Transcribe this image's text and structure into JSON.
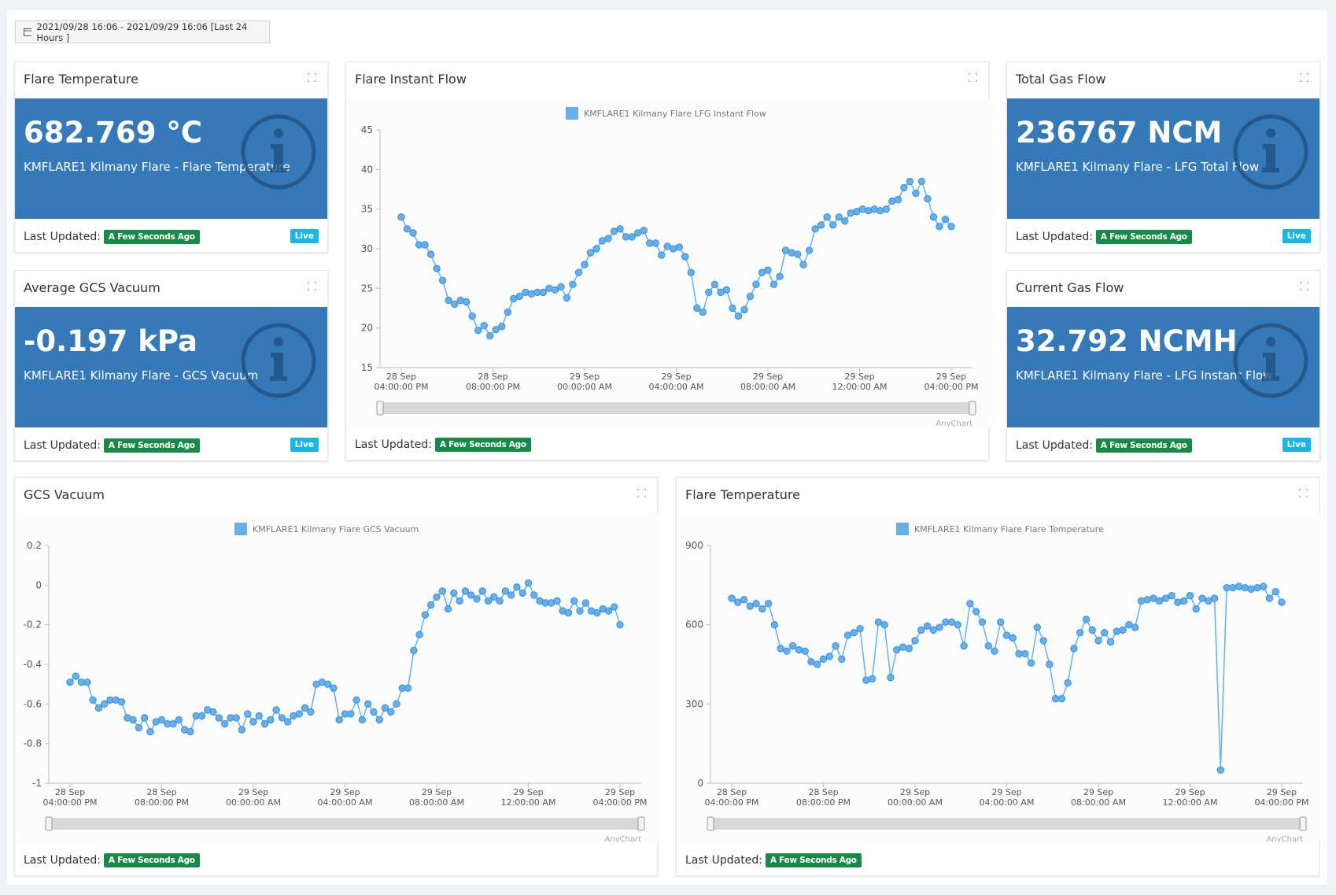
{
  "header": {
    "date_range": "2021/09/28 16:06 - 2021/09/29 16:06 [Last 24 Hours ]"
  },
  "cards": [
    {
      "title": "Flare Temperature",
      "value": "682.769 °C",
      "description": "KMFLARE1 Kilmany Flare - Flare Temperature",
      "updated_label": "Last Updated:",
      "updated_badge": "A Few Seconds Ago",
      "live": "Live"
    },
    {
      "title": "Average GCS Vacuum",
      "value": "-0.197 kPa",
      "description": "KMFLARE1 Kilmany Flare - GCS Vacuum",
      "updated_label": "Last Updated:",
      "updated_badge": "A Few Seconds Ago",
      "live": "Live"
    },
    {
      "title": "Total Gas Flow",
      "value": "236767 NCM",
      "description": "KMFLARE1 Kilmany Flare - LFG Total Flow",
      "updated_label": "Last Updated:",
      "updated_badge": "A Few Seconds Ago",
      "live": "Live"
    },
    {
      "title": "Current Gas Flow",
      "value": "32.792 NCMH",
      "description": "KMFLARE1 Kilmany Flare - LFG Instant Flow",
      "updated_label": "Last Updated:",
      "updated_badge": "A Few Seconds Ago",
      "live": "Live"
    }
  ],
  "chart_data": [
    {
      "type": "line",
      "title": "Flare Instant Flow",
      "credit": "AnyChart",
      "footer": {
        "label": "Last Updated:",
        "badge": "A Few Seconds Ago"
      },
      "series": [
        {
          "name": "KMFLARE1 Kilmany Flare LFG Instant Flow",
          "color": "#64b0ee",
          "values": [
            34,
            32.5,
            32,
            30.5,
            30.5,
            29.3,
            27.5,
            26,
            23.5,
            23,
            23.5,
            23.3,
            21.5,
            19.7,
            20.3,
            19,
            19.8,
            20.2,
            22,
            23.7,
            24,
            24.5,
            24.3,
            24.5,
            24.5,
            25,
            24.8,
            25.2,
            23.8,
            25.5,
            27,
            28,
            29.5,
            30,
            31,
            31.3,
            32.2,
            32.5,
            31.5,
            31.5,
            32,
            32.3,
            30.7,
            30.7,
            29.2,
            30.3,
            30,
            30.2,
            29,
            27,
            22.5,
            22,
            24.5,
            25.5,
            24.5,
            24.8,
            22.5,
            21.5,
            22.3,
            24,
            25.5,
            27,
            27.3,
            25.5,
            26.5,
            29.8,
            29.5,
            29.3,
            28,
            29.8,
            32.5,
            33,
            34,
            33,
            34,
            33.5,
            34.5,
            34.7,
            35,
            34.8,
            35,
            34.8,
            35,
            36,
            36.2,
            37.7,
            38.5,
            37,
            38.5,
            36.3,
            34,
            32.8,
            33.7,
            32.8
          ]
        }
      ],
      "ylim": [
        15,
        45
      ],
      "yticks": [
        15,
        20,
        25,
        30,
        35,
        40,
        45
      ],
      "xticks": [
        [
          "28 Sep",
          "04:00:00 PM"
        ],
        [
          "28 Sep",
          "08:00:00 PM"
        ],
        [
          "29 Sep",
          "00:00:00 AM"
        ],
        [
          "29 Sep",
          "04:00:00 AM"
        ],
        [
          "29 Sep",
          "08:00:00 AM"
        ],
        [
          "29 Sep",
          "12:00:00 AM"
        ],
        [
          "29 Sep",
          "04:00:00 PM"
        ]
      ]
    },
    {
      "type": "line",
      "title": "GCS Vacuum",
      "credit": "AnyChart",
      "footer": {
        "label": "Last Updated:",
        "badge": "A Few Seconds Ago"
      },
      "series": [
        {
          "name": "KMFLARE1 Kilmany Flare GCS Vacuum",
          "color": "#64b0ee",
          "values": [
            -0.49,
            -0.46,
            -0.49,
            -0.49,
            -0.58,
            -0.62,
            -0.6,
            -0.58,
            -0.58,
            -0.59,
            -0.67,
            -0.68,
            -0.72,
            -0.67,
            -0.74,
            -0.69,
            -0.68,
            -0.7,
            -0.7,
            -0.68,
            -0.73,
            -0.74,
            -0.66,
            -0.66,
            -0.63,
            -0.64,
            -0.67,
            -0.7,
            -0.67,
            -0.67,
            -0.73,
            -0.65,
            -0.69,
            -0.66,
            -0.7,
            -0.68,
            -0.63,
            -0.67,
            -0.69,
            -0.66,
            -0.65,
            -0.62,
            -0.64,
            -0.5,
            -0.49,
            -0.5,
            -0.52,
            -0.68,
            -0.65,
            -0.65,
            -0.58,
            -0.68,
            -0.6,
            -0.64,
            -0.68,
            -0.62,
            -0.64,
            -0.6,
            -0.52,
            -0.52,
            -0.33,
            -0.25,
            -0.15,
            -0.1,
            -0.06,
            -0.03,
            -0.12,
            -0.04,
            -0.08,
            -0.03,
            -0.05,
            -0.07,
            -0.03,
            -0.08,
            -0.06,
            -0.08,
            -0.03,
            -0.05,
            -0.01,
            -0.04,
            0.01,
            -0.05,
            -0.08,
            -0.09,
            -0.09,
            -0.08,
            -0.13,
            -0.14,
            -0.08,
            -0.13,
            -0.09,
            -0.13,
            -0.14,
            -0.12,
            -0.13,
            -0.11,
            -0.2
          ]
        }
      ],
      "ylim": [
        -1,
        0.2
      ],
      "yticks": [
        -1,
        -0.8,
        -0.6,
        -0.4,
        -0.2,
        0,
        0.2
      ],
      "xticks": [
        [
          "28 Sep",
          "04:00:00 PM"
        ],
        [
          "28 Sep",
          "08:00:00 PM"
        ],
        [
          "29 Sep",
          "00:00:00 AM"
        ],
        [
          "29 Sep",
          "04:00:00 AM"
        ],
        [
          "29 Sep",
          "08:00:00 AM"
        ],
        [
          "29 Sep",
          "12:00:00 AM"
        ],
        [
          "29 Sep",
          "04:00:00 PM"
        ]
      ]
    },
    {
      "type": "line",
      "title": "Flare Temperature",
      "credit": "AnyChart",
      "footer": {
        "label": "Last Updated:",
        "badge": "A Few Seconds Ago"
      },
      "series": [
        {
          "name": "KMFLARE1 Kilmany Flare Flare Temperature",
          "color": "#64b0ee",
          "values": [
            700,
            685,
            695,
            670,
            680,
            660,
            680,
            600,
            510,
            500,
            520,
            505,
            500,
            460,
            450,
            470,
            480,
            520,
            470,
            560,
            570,
            585,
            390,
            395,
            610,
            600,
            400,
            505,
            515,
            510,
            540,
            580,
            595,
            580,
            590,
            610,
            610,
            600,
            520,
            680,
            650,
            610,
            520,
            500,
            610,
            560,
            550,
            490,
            490,
            455,
            590,
            540,
            450,
            320,
            320,
            380,
            510,
            570,
            620,
            580,
            540,
            570,
            535,
            575,
            580,
            600,
            590,
            690,
            695,
            700,
            690,
            700,
            710,
            685,
            690,
            710,
            660,
            700,
            690,
            700,
            50,
            740,
            740,
            745,
            740,
            735,
            740,
            745,
            700,
            725,
            685
          ]
        }
      ],
      "ylim": [
        0,
        900
      ],
      "yticks": [
        0,
        300,
        600,
        900
      ],
      "xticks": [
        [
          "28 Sep",
          "04:00:00 PM"
        ],
        [
          "28 Sep",
          "08:00:00 PM"
        ],
        [
          "29 Sep",
          "00:00:00 AM"
        ],
        [
          "29 Sep",
          "04:00:00 AM"
        ],
        [
          "29 Sep",
          "08:00:00 AM"
        ],
        [
          "29 Sep",
          "12:00:00 AM"
        ],
        [
          "29 Sep",
          "04:00:00 PM"
        ]
      ]
    }
  ]
}
